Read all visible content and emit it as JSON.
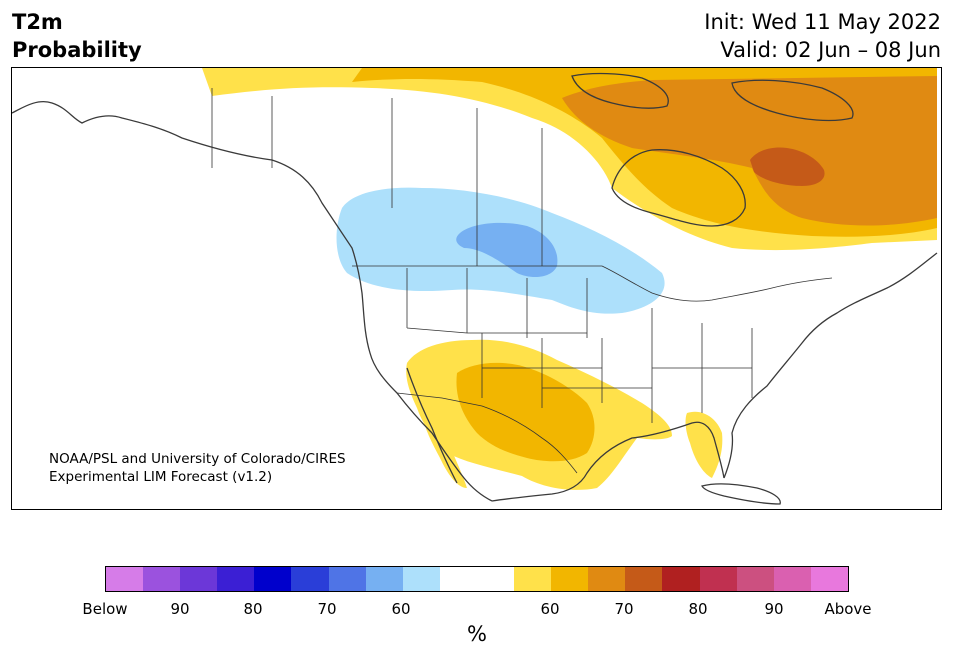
{
  "header": {
    "variable": "T2m",
    "product": "Probability",
    "init": "Init: Wed 11 May 2022",
    "valid": "Valid: 02 Jun – 08 Jun"
  },
  "credit": {
    "line1": "NOAA/PSL and University of Colorado/CIRES",
    "line2": "Experimental LIM Forecast (v1.2)"
  },
  "colorbar": {
    "colors": [
      "#d67ce8",
      "#9b52de",
      "#6c37d8",
      "#3b1fd4",
      "#0000cc",
      "#2a3ed8",
      "#4f74e6",
      "#76b0f2",
      "#ade0fb",
      "#ffffff",
      "#ffffff",
      "#ffe14a",
      "#f2b600",
      "#e08a12",
      "#c55a18",
      "#b02020",
      "#c03050",
      "#cc5080",
      "#da60b0",
      "#e878dd"
    ],
    "ticks": [
      "Below",
      "90",
      "80",
      "70",
      "60",
      "60",
      "70",
      "80",
      "90",
      "Above"
    ],
    "unit": "%"
  },
  "legend_categories": {
    "below_normal": [
      "90",
      "80",
      "70",
      "60"
    ],
    "above_normal": [
      "60",
      "70",
      "80",
      "90"
    ]
  }
}
